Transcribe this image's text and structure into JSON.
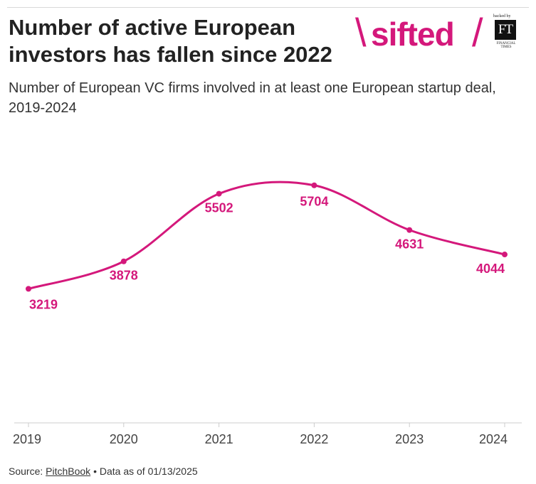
{
  "header": {
    "title": "Number of active European investors has fallen since 2022",
    "subtitle": "Number of European VC firms involved in at least one European startup deal, 2019-2024"
  },
  "brand": {
    "logo_word": "sifted",
    "logo_slash": "\\",
    "divider_slash": "/",
    "backed_by": "backed by",
    "ft_initials": "FT",
    "ft_name": "FINANCIAL TIMES",
    "accent": "#d4187b"
  },
  "footer": {
    "source_prefix": "Source: ",
    "source_name": "PitchBook",
    "note": " • Data as of 01/13/2025"
  },
  "chart_data": {
    "type": "line",
    "title": "Number of active European investors has fallen since 2022",
    "subtitle": "Number of European VC firms involved in at least one European startup deal, 2019-2024",
    "xlabel": "",
    "ylabel": "",
    "x": [
      "2019",
      "2020",
      "2021",
      "2022",
      "2023",
      "2024"
    ],
    "values": [
      3219,
      3878,
      5502,
      5704,
      4631,
      4044
    ],
    "data_labels": [
      "3219",
      "3878",
      "5502",
      "5704",
      "4631",
      "4044"
    ],
    "ylim": [
      0,
      6000
    ],
    "grid": false,
    "color": "#d4187b"
  }
}
